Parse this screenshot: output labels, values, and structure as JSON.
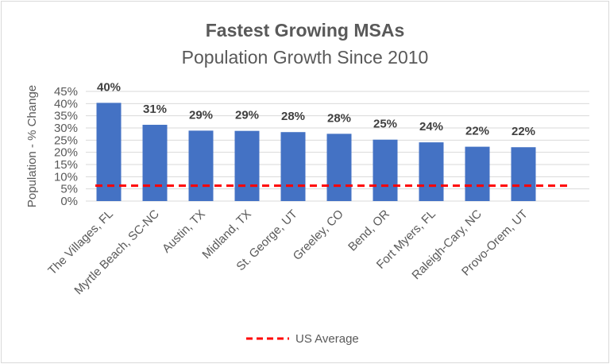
{
  "chart_data": {
    "type": "bar",
    "title": "Fastest Growing MSAs",
    "subtitle": "Population Growth Since 2010",
    "xlabel": "",
    "ylabel": "Population - % Change",
    "ylim": [
      0,
      45
    ],
    "yticks": [
      "0%",
      "5%",
      "10%",
      "15%",
      "20%",
      "25%",
      "30%",
      "35%",
      "40%",
      "45%"
    ],
    "grid": true,
    "categories": [
      "The Villages, FL",
      "Myrtle Beach, SC-NC",
      "Austin, TX",
      "Midland, TX",
      "St. George, UT",
      "Greeley, CO",
      "Bend, OR",
      "Fort Myers, FL",
      "Raleigh-Cary, NC",
      "Provo-Orem, UT"
    ],
    "values": [
      40.3,
      31.3,
      28.9,
      28.8,
      28.3,
      27.6,
      25.2,
      24.1,
      22.3,
      22.1
    ],
    "data_labels": [
      "40%",
      "31%",
      "29%",
      "29%",
      "28%",
      "28%",
      "25%",
      "24%",
      "22%",
      "22%"
    ],
    "reference_line": {
      "name": "US Average",
      "value": 6.3,
      "color": "#ff0000",
      "style": "dashed"
    },
    "bar_color": "#4472c4",
    "legend": {
      "position": "bottom",
      "entries": [
        "US Average"
      ]
    }
  }
}
